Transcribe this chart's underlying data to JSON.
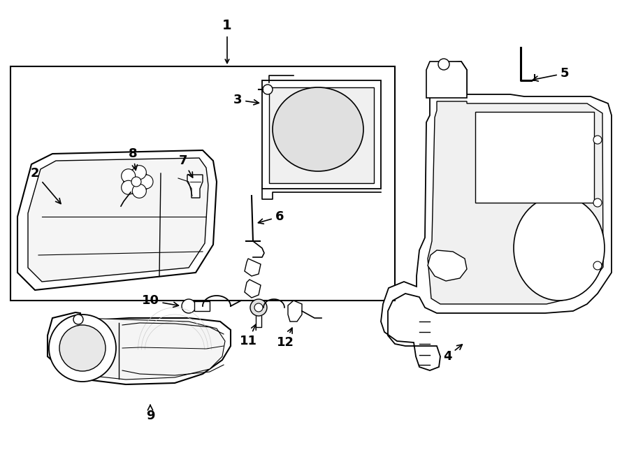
{
  "background_color": "#ffffff",
  "line_color": "#000000",
  "fig_width": 9.0,
  "fig_height": 6.61,
  "dpi": 100,
  "font_size_labels": 13
}
